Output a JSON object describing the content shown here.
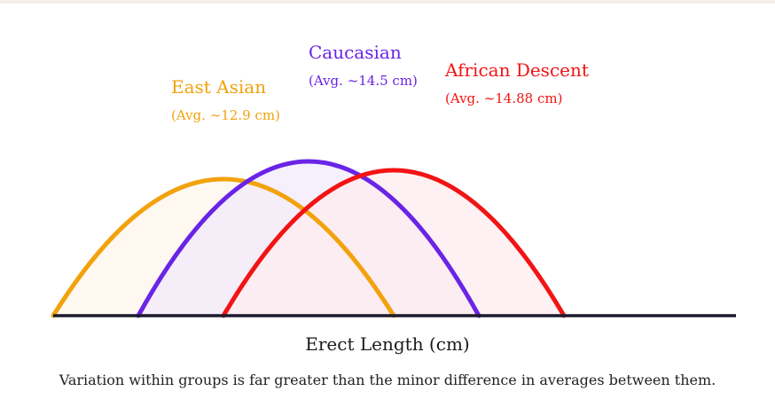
{
  "chart_data": {
    "type": "area",
    "xlabel": "Erect Length (cm)",
    "note": "Variation within groups is far greater than the minor difference in averages between them.",
    "x_ticks_shown": false,
    "y_axis_shown": false,
    "grid": false,
    "series": [
      {
        "name": "East Asian",
        "avg_label": "(Avg. ~12.9 cm)",
        "mean": 12.9,
        "color": "#f2a20c",
        "fill": "#fdf6ec"
      },
      {
        "name": "Caucasian",
        "avg_label": "(Avg. ~14.5 cm)",
        "mean": 14.5,
        "color": "#6a24e6",
        "fill": "#f1ebfb"
      },
      {
        "name": "African Descent",
        "avg_label": "(Avg. ~14.88 cm)",
        "mean": 14.88,
        "color": "#f21414",
        "fill": "#fdecef"
      }
    ],
    "axis_color": "#1c1b2e"
  }
}
